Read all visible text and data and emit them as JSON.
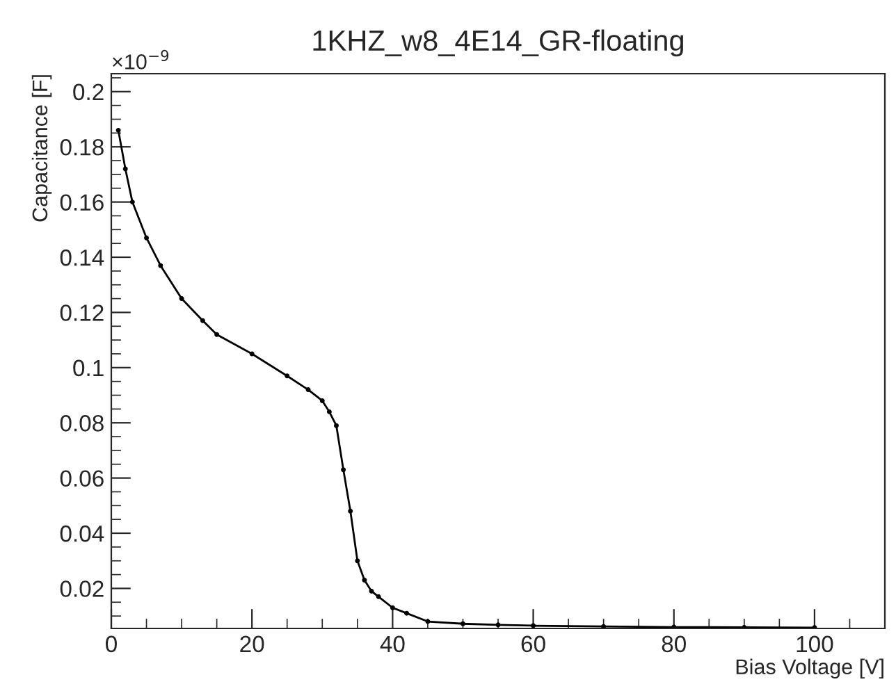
{
  "chart_data": {
    "type": "line",
    "title": "1KHZ_w8_4E14_GR-floating",
    "xlabel": "Bias Voltage [V]",
    "ylabel": "Capacitance [F]",
    "annotations": [
      "×10$^{−9}$"
    ],
    "x": [
      1,
      2,
      3,
      5,
      7,
      10,
      13,
      15,
      20,
      25,
      28,
      30,
      31,
      32,
      33,
      34,
      35,
      36,
      37,
      38,
      40,
      42,
      45,
      50,
      55,
      60,
      70,
      80,
      90,
      100
    ],
    "series": [
      {
        "color": "#000000",
        "values": [
          0.186,
          0.172,
          0.16,
          0.147,
          0.137,
          0.125,
          0.117,
          0.112,
          0.105,
          0.097,
          0.092,
          0.088,
          0.084,
          0.079,
          0.063,
          0.048,
          0.03,
          0.023,
          0.019,
          0.017,
          0.013,
          0.011,
          0.008,
          0.0072,
          0.0068,
          0.0065,
          0.0062,
          0.006,
          0.0059,
          0.0058
        ]
      }
    ],
    "xlim": [
      0,
      110
    ],
    "ylim": [
      0.0055,
      0.2065
    ],
    "xticks": [
      0,
      20,
      40,
      60,
      80,
      100
    ],
    "yticks": [
      0.02,
      0.04,
      0.06,
      0.08,
      0.1,
      0.12,
      0.14,
      0.16,
      0.18,
      0.2
    ],
    "grid": false,
    "marker": "circle",
    "line_style": "solid"
  }
}
